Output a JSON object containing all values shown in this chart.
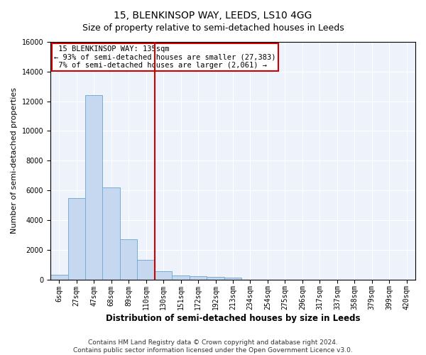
{
  "title": "15, BLENKINSOP WAY, LEEDS, LS10 4GG",
  "subtitle": "Size of property relative to semi-detached houses in Leeds",
  "xlabel": "Distribution of semi-detached houses by size in Leeds",
  "ylabel": "Number of semi-detached properties",
  "bar_color": "#c5d8f0",
  "bar_edge_color": "#7aadd4",
  "categories": [
    "6sqm",
    "27sqm",
    "47sqm",
    "68sqm",
    "89sqm",
    "110sqm",
    "130sqm",
    "151sqm",
    "172sqm",
    "192sqm",
    "213sqm",
    "234sqm",
    "254sqm",
    "275sqm",
    "296sqm",
    "317sqm",
    "337sqm",
    "358sqm",
    "379sqm",
    "399sqm",
    "420sqm"
  ],
  "values": [
    300,
    5500,
    12400,
    6200,
    2700,
    1300,
    550,
    280,
    200,
    150,
    100,
    0,
    0,
    0,
    0,
    0,
    0,
    0,
    0,
    0,
    0
  ],
  "property_label": "15 BLENKINSOP WAY: 135sqm",
  "pct_smaller": 93,
  "pct_smaller_n": "27,383",
  "pct_larger": 7,
  "pct_larger_n": "2,061",
  "vline_x_index": 5.5,
  "ylim": [
    0,
    16000
  ],
  "yticks": [
    0,
    2000,
    4000,
    6000,
    8000,
    10000,
    12000,
    14000,
    16000
  ],
  "background_color": "#ffffff",
  "plot_bg_color": "#eef2fa",
  "grid_color": "#ffffff",
  "annotation_box_color": "#ffffff",
  "annotation_box_edge": "#cc0000",
  "vline_color": "#cc0000",
  "footer_text": "Contains HM Land Registry data © Crown copyright and database right 2024.\nContains public sector information licensed under the Open Government Licence v3.0.",
  "title_fontsize": 10,
  "subtitle_fontsize": 9,
  "xlabel_fontsize": 8.5,
  "ylabel_fontsize": 8,
  "tick_fontsize": 7,
  "annotation_fontsize": 7.5,
  "footer_fontsize": 6.5
}
